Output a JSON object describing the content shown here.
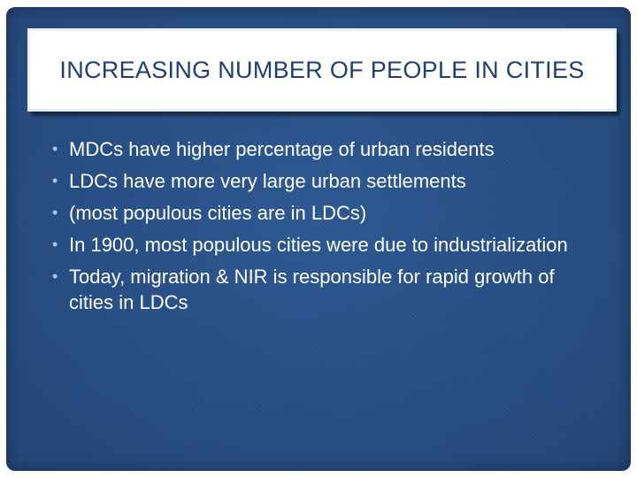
{
  "slide": {
    "title": "INCREASING NUMBER OF PEOPLE IN CITIES",
    "bullets": [
      "MDCs have higher percentage of urban residents",
      "LDCs have more very large urban settlements",
      "(most populous cities are in LDCs)",
      "In 1900, most populous cities were due to industrialization",
      "Today, migration & NIR is responsible for rapid growth of cities in LDCs"
    ],
    "bullet_glyph": "•"
  },
  "colors": {
    "background": "#274f87",
    "title_text": "#1f3f6f",
    "body_text": "#ffffff"
  }
}
